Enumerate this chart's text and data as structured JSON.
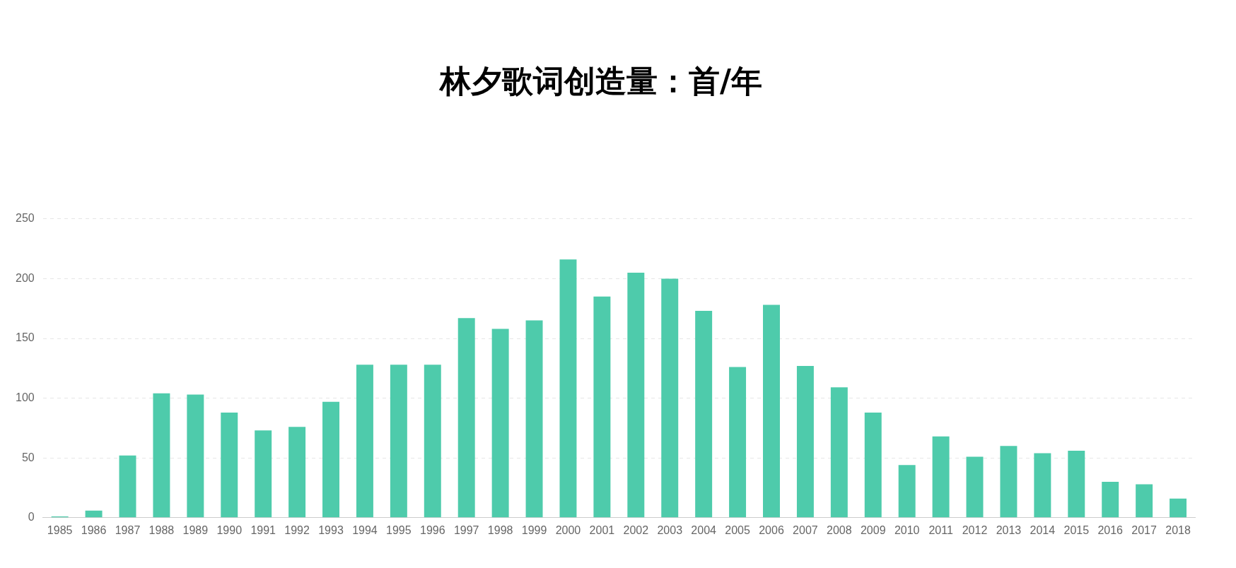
{
  "chart_data": {
    "type": "bar",
    "title": "林夕歌词创造量：首/年",
    "categories": [
      "1985",
      "1986",
      "1987",
      "1988",
      "1989",
      "1990",
      "1991",
      "1992",
      "1993",
      "1994",
      "1995",
      "1996",
      "1997",
      "1998",
      "1999",
      "2000",
      "2001",
      "2002",
      "2003",
      "2004",
      "2005",
      "2006",
      "2007",
      "2008",
      "2009",
      "2010",
      "2011",
      "2012",
      "2013",
      "2014",
      "2015",
      "2016",
      "2017",
      "2018"
    ],
    "values": [
      1,
      6,
      52,
      104,
      103,
      88,
      73,
      76,
      97,
      128,
      128,
      128,
      167,
      158,
      165,
      216,
      185,
      205,
      200,
      173,
      126,
      178,
      127,
      109,
      88,
      44,
      68,
      51,
      60,
      54,
      56,
      30,
      28,
      16
    ],
    "color": "#4ecbab",
    "ylim": [
      0,
      250
    ],
    "yticks": [
      0,
      50,
      100,
      150,
      200,
      250
    ],
    "grid": "y"
  }
}
